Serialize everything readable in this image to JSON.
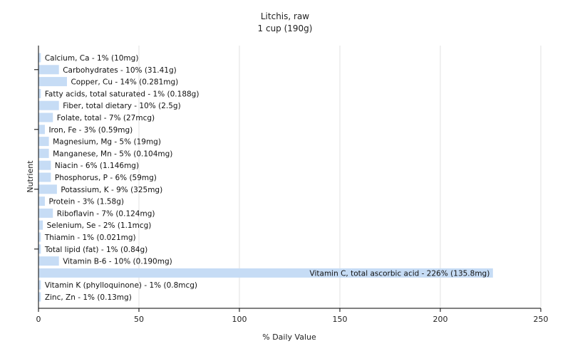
{
  "chart_data": {
    "type": "bar",
    "orientation": "horizontal",
    "title": "Litchis, raw",
    "subtitle": "1 cup (190g)",
    "xlabel": "% Daily Value",
    "ylabel": "Nutrient",
    "xlim": [
      0,
      250
    ],
    "xticks": [
      0,
      50,
      100,
      150,
      200,
      250
    ],
    "grid": true,
    "bar_color": "#c6dcf5",
    "categories": [
      "Calcium, Ca",
      "Carbohydrates",
      "Copper, Cu",
      "Fatty acids, total saturated",
      "Fiber, total dietary",
      "Folate, total",
      "Iron, Fe",
      "Magnesium, Mg",
      "Manganese, Mn",
      "Niacin",
      "Phosphorus, P",
      "Potassium, K",
      "Protein",
      "Riboflavin",
      "Selenium, Se",
      "Thiamin",
      "Total lipid (fat)",
      "Vitamin B-6",
      "Vitamin C, total ascorbic acid",
      "Vitamin K (phylloquinone)",
      "Zinc, Zn"
    ],
    "values": [
      1,
      10,
      14,
      1,
      10,
      7,
      3,
      5,
      5,
      6,
      6,
      9,
      3,
      7,
      2,
      1,
      1,
      10,
      226,
      1,
      1
    ],
    "labels": [
      "Calcium, Ca - 1% (10mg)",
      "Carbohydrates - 10% (31.41g)",
      "Copper, Cu - 14% (0.281mg)",
      "Fatty acids, total saturated - 1% (0.188g)",
      "Fiber, total dietary - 10% (2.5g)",
      "Folate, total - 7% (27mcg)",
      "Iron, Fe - 3% (0.59mg)",
      "Magnesium, Mg - 5% (19mg)",
      "Manganese, Mn - 5% (0.104mg)",
      "Niacin - 6% (1.146mg)",
      "Phosphorus, P - 6% (59mg)",
      "Potassium, K - 9% (325mg)",
      "Protein - 3% (1.58g)",
      "Riboflavin - 7% (0.124mg)",
      "Selenium, Se - 2% (1.1mcg)",
      "Thiamin - 1% (0.021mg)",
      "Total lipid (fat) - 1% (0.84g)",
      "Vitamin B-6 - 10% (0.190mg)",
      "Vitamin C, total ascorbic acid - 226% (135.8mg)",
      "Vitamin K (phylloquinone) - 1% (0.8mcg)",
      "Zinc, Zn - 1% (0.13mg)"
    ]
  }
}
